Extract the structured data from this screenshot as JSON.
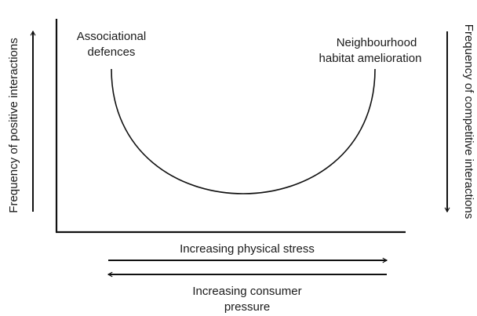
{
  "y_axis_left": {
    "label": "Frequency of positive interactions"
  },
  "y_axis_right": {
    "label": "Frequency of competitive interactions"
  },
  "curve_labels": [
    {
      "lines": [
        "Associational",
        "defences"
      ]
    },
    {
      "lines": [
        "Neighbourhood",
        "habitat amelioration"
      ]
    }
  ],
  "x_arrows": [
    {
      "lines": [
        "Increasing physical stress"
      ]
    },
    {
      "lines": [
        "Increasing consumer",
        "pressure"
      ]
    }
  ]
}
